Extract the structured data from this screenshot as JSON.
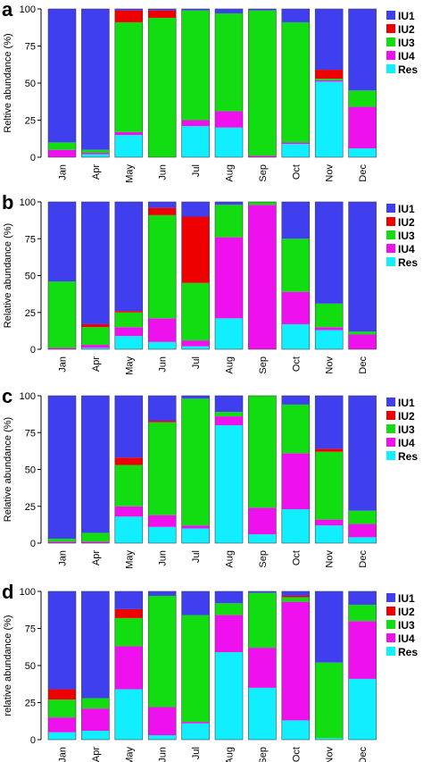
{
  "colors": {
    "IU1": "#3f3ff0",
    "IU2": "#ee0000",
    "IU3": "#11dd11",
    "IU4": "#ee11ee",
    "Res": "#11eeff"
  },
  "chart_data": [
    {
      "type": "bar",
      "stacked": true,
      "panel": "a",
      "ylabel": "Reltive abundance (%)",
      "ylim": [
        0,
        100
      ],
      "yticks": [
        0,
        25,
        50,
        75,
        100
      ],
      "categories": [
        "Jan",
        "Apr",
        "May",
        "Jun",
        "Jul",
        "Aug",
        "Sep",
        "Oct",
        "Nov",
        "Dec"
      ],
      "legend": [
        "IU1",
        "IU2",
        "IU3",
        "IU4",
        "Res"
      ],
      "series": [
        {
          "name": "Res",
          "values": [
            0,
            2,
            15,
            0,
            21,
            20,
            0,
            9,
            51,
            6
          ]
        },
        {
          "name": "IU4",
          "values": [
            5,
            1,
            2,
            0,
            4,
            11,
            1,
            1,
            1,
            28
          ]
        },
        {
          "name": "IU3",
          "values": [
            5,
            2,
            74,
            94,
            74,
            66,
            98,
            81,
            1,
            11
          ]
        },
        {
          "name": "IU2",
          "values": [
            0,
            0,
            8,
            5,
            0,
            0,
            0,
            0,
            6,
            0
          ]
        },
        {
          "name": "IU1",
          "values": [
            90,
            95,
            1,
            1,
            1,
            3,
            1,
            9,
            41,
            55
          ]
        }
      ]
    },
    {
      "type": "bar",
      "stacked": true,
      "panel": "b",
      "ylabel": "Relative abundance (%)",
      "ylim": [
        0,
        100
      ],
      "yticks": [
        0,
        25,
        50,
        75,
        100
      ],
      "categories": [
        "Jan",
        "Apr",
        "May",
        "Jun",
        "Jul",
        "Aug",
        "Sep",
        "Oct",
        "Nov",
        "Dec"
      ],
      "legend": [
        "IU1",
        "IU2",
        "IU3",
        "IU4",
        "Res"
      ],
      "series": [
        {
          "name": "Res",
          "values": [
            0,
            1,
            9,
            5,
            2,
            21,
            0,
            17,
            13,
            0
          ]
        },
        {
          "name": "IU4",
          "values": [
            1,
            2,
            6,
            16,
            4,
            55,
            98,
            22,
            2,
            10
          ]
        },
        {
          "name": "IU3",
          "values": [
            45,
            12,
            10,
            70,
            39,
            22,
            2,
            36,
            16,
            2
          ]
        },
        {
          "name": "IU2",
          "values": [
            0,
            2,
            1,
            5,
            45,
            0,
            0,
            0,
            0,
            0
          ]
        },
        {
          "name": "IU1",
          "values": [
            54,
            83,
            74,
            4,
            10,
            2,
            0,
            25,
            69,
            88
          ]
        }
      ]
    },
    {
      "type": "bar",
      "stacked": true,
      "panel": "c",
      "ylabel": "Relative abundance (%)",
      "ylim": [
        0,
        100
      ],
      "yticks": [
        0,
        25,
        50,
        75,
        100
      ],
      "categories": [
        "Jan",
        "Apr",
        "May",
        "Jun",
        "Jul",
        "Aug",
        "Sep",
        "Oct",
        "Nov",
        "Dec"
      ],
      "legend": [
        "IU1",
        "IU2",
        "IU3",
        "IU4",
        "Res"
      ],
      "series": [
        {
          "name": "Res",
          "values": [
            0,
            0,
            18,
            11,
            10,
            80,
            6,
            23,
            12,
            4
          ]
        },
        {
          "name": "IU4",
          "values": [
            1,
            1,
            7,
            8,
            2,
            6,
            18,
            38,
            4,
            9
          ]
        },
        {
          "name": "IU3",
          "values": [
            2,
            6,
            28,
            63,
            86,
            3,
            76,
            33,
            46,
            9
          ]
        },
        {
          "name": "IU2",
          "values": [
            0,
            0,
            5,
            1,
            0,
            0,
            0,
            0,
            2,
            0
          ]
        },
        {
          "name": "IU1",
          "values": [
            97,
            93,
            42,
            17,
            2,
            11,
            0,
            6,
            36,
            78
          ]
        }
      ]
    },
    {
      "type": "bar",
      "stacked": true,
      "panel": "d",
      "ylabel": "relative abundance (%)",
      "ylim": [
        0,
        100
      ],
      "yticks": [
        0,
        25,
        50,
        75,
        100
      ],
      "categories": [
        "Jan",
        "Apr",
        "May",
        "Jun",
        "Jul",
        "Aug",
        "Sep",
        "Oct",
        "Nov",
        "Dec"
      ],
      "legend": [
        "IU1",
        "IU2",
        "IU3",
        "IU4",
        "Res"
      ],
      "series": [
        {
          "name": "Res",
          "values": [
            5,
            6,
            34,
            3,
            11,
            59,
            35,
            13,
            1,
            41
          ]
        },
        {
          "name": "IU4",
          "values": [
            10,
            15,
            29,
            19,
            1,
            25,
            27,
            80,
            0,
            39
          ]
        },
        {
          "name": "IU3",
          "values": [
            12,
            7,
            19,
            75,
            72,
            8,
            37,
            3,
            51,
            11
          ]
        },
        {
          "name": "IU2",
          "values": [
            7,
            0,
            6,
            0,
            0,
            0,
            0,
            1,
            0,
            0
          ]
        },
        {
          "name": "IU1",
          "values": [
            66,
            72,
            12,
            3,
            16,
            8,
            1,
            3,
            48,
            9
          ]
        }
      ]
    }
  ]
}
